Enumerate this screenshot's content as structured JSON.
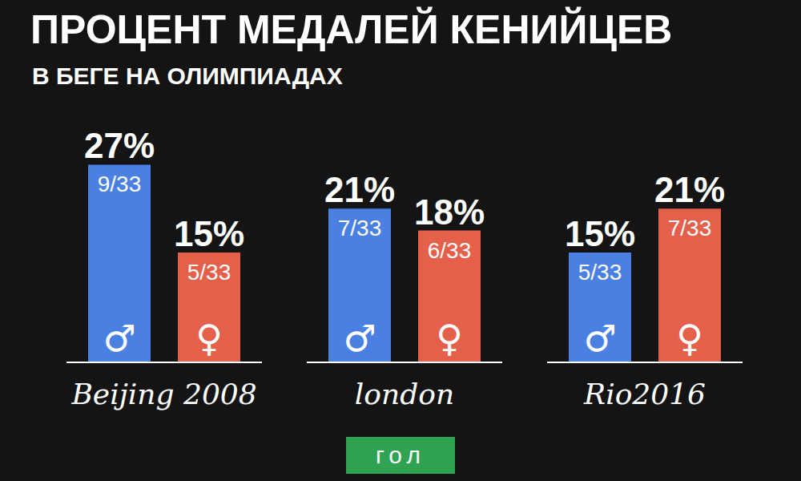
{
  "chart_data": {
    "type": "bar",
    "title": "ПРОЦЕНТ МЕДАЛЕЙ КЕНИЙЦЕВ",
    "subtitle": "В БЕГЕ НА ОЛИМПИАДАХ",
    "categories": [
      "Beijing 2008",
      "london",
      "Rio2016"
    ],
    "series": [
      {
        "name": "♂",
        "color": "#4a80e2",
        "values": [
          27,
          21,
          15
        ],
        "value_labels": [
          "27%",
          "21%",
          "15%"
        ],
        "fractions": [
          "9/33",
          "7/33",
          "5/33"
        ]
      },
      {
        "name": "♀",
        "color": "#e5604a",
        "values": [
          15,
          18,
          21
        ],
        "value_labels": [
          "15%",
          "18%",
          "21%"
        ],
        "fractions": [
          "5/33",
          "6/33",
          "7/33"
        ]
      }
    ],
    "ylim": [
      0,
      30
    ],
    "data_labels": true,
    "tick_labels": "x",
    "grid": false,
    "footer": "гол"
  }
}
